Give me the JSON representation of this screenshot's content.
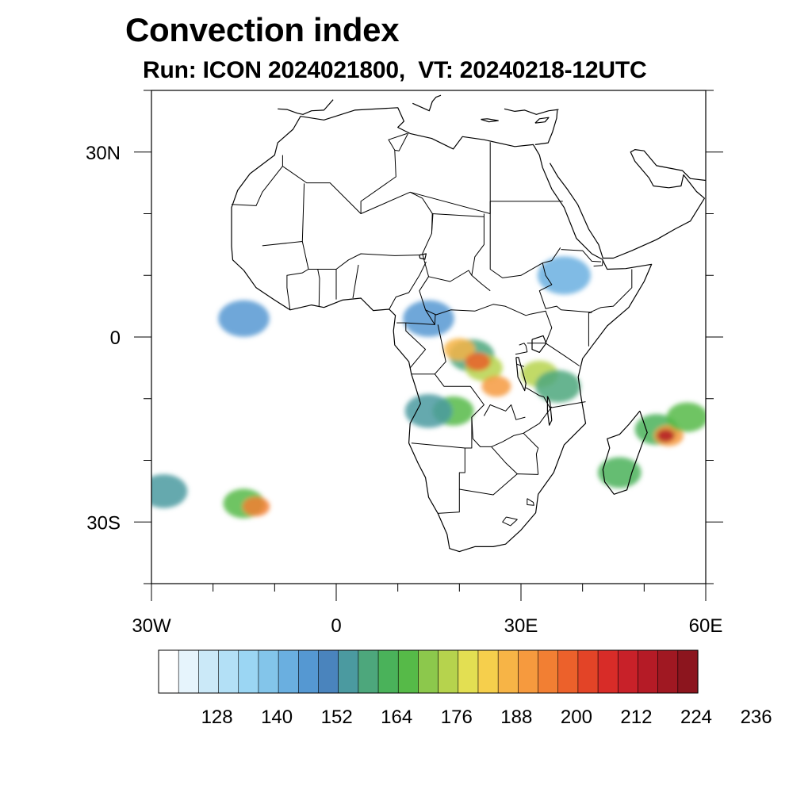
{
  "title": "Convection index",
  "subtitle": "Run: ICON 2024021800,  VT: 20240218-12UTC",
  "map": {
    "lon_range": [
      -30,
      60
    ],
    "lat_range": [
      -40,
      40
    ],
    "lat_labels": [
      {
        "lat": 30,
        "text": "30N"
      },
      {
        "lat": 0,
        "text": "0"
      },
      {
        "lat": -30,
        "text": "30S"
      }
    ],
    "lon_labels": [
      {
        "lon": -30,
        "text": "30W"
      },
      {
        "lon": 0,
        "text": "0"
      },
      {
        "lon": 30,
        "text": "30E"
      },
      {
        "lon": 60,
        "text": "60E"
      }
    ],
    "minor_lat_ticks": [
      40,
      30,
      20,
      10,
      0,
      -10,
      -20,
      -30,
      -40
    ],
    "minor_lon_ticks": [
      -30,
      -20,
      -10,
      0,
      10,
      20,
      30,
      40,
      50,
      60
    ]
  },
  "colorbar": {
    "colors": [
      "#ffffff",
      "#e6f4fc",
      "#cbe9f8",
      "#b3e0f6",
      "#9bd6f3",
      "#83c5ea",
      "#6aafe0",
      "#5598d2",
      "#4a84bd",
      "#4b9aa0",
      "#4da77c",
      "#4ab25a",
      "#56ba48",
      "#8cc84c",
      "#b6d34d",
      "#e3df52",
      "#f6cf4c",
      "#f7b446",
      "#f69a3e",
      "#f27f33",
      "#ec612b",
      "#e34427",
      "#d82c28",
      "#c82129",
      "#b51b26",
      "#a01822",
      "#8c151e"
    ],
    "labels": [
      "128",
      "140",
      "152",
      "164",
      "176",
      "188",
      "200",
      "212",
      "224",
      "236"
    ]
  },
  "convection_cells": [
    {
      "lon": 22,
      "lat": -3,
      "level": 10
    },
    {
      "lon": 24,
      "lat": -5,
      "level": 14
    },
    {
      "lon": 20,
      "lat": -2,
      "level": 17
    },
    {
      "lon": 23,
      "lat": -4,
      "level": 20
    },
    {
      "lon": 26,
      "lat": -8,
      "level": 18
    },
    {
      "lon": 19,
      "lat": -12,
      "level": 12
    },
    {
      "lon": 15,
      "lat": -12,
      "level": 9
    },
    {
      "lon": 33,
      "lat": -6,
      "level": 14
    },
    {
      "lon": 36,
      "lat": -8,
      "level": 10
    },
    {
      "lon": 52,
      "lat": -15,
      "level": 11
    },
    {
      "lon": 54,
      "lat": -16,
      "level": 18
    },
    {
      "lon": 53.5,
      "lat": -16,
      "level": 24
    },
    {
      "lon": 57,
      "lat": -13,
      "level": 12
    },
    {
      "lon": 46,
      "lat": -22,
      "level": 11
    },
    {
      "lon": -15,
      "lat": -27,
      "level": 12
    },
    {
      "lon": -13,
      "lat": -27.5,
      "level": 19
    },
    {
      "lon": -28,
      "lat": -25,
      "level": 9
    },
    {
      "lon": 15,
      "lat": 3,
      "level": 7
    },
    {
      "lon": -15,
      "lat": 3,
      "level": 7
    },
    {
      "lon": 37,
      "lat": 10,
      "level": 6
    }
  ],
  "coastlines": {
    "africa_mainland": [
      [
        -17,
        14.7
      ],
      [
        -17,
        21
      ],
      [
        -16,
        23.8
      ],
      [
        -14,
        26.5
      ],
      [
        -10,
        29.5
      ],
      [
        -9.5,
        31.5
      ],
      [
        -7,
        33.7
      ],
      [
        -5.8,
        35.8
      ],
      [
        -2,
        35.2
      ],
      [
        3,
        36.8
      ],
      [
        10,
        37.2
      ],
      [
        11,
        35
      ],
      [
        10,
        34
      ],
      [
        12,
        33
      ],
      [
        15.5,
        32.2
      ],
      [
        19,
        30.5
      ],
      [
        20.5,
        32.5
      ],
      [
        24,
        32
      ],
      [
        29,
        30.9
      ],
      [
        32,
        31.2
      ],
      [
        33,
        29.5
      ],
      [
        33.5,
        27.5
      ],
      [
        35,
        24
      ],
      [
        37,
        21
      ],
      [
        39,
        16
      ],
      [
        41.5,
        13.5
      ],
      [
        43.2,
        12.6
      ],
      [
        44,
        11
      ],
      [
        47,
        11.1
      ],
      [
        51.2,
        11.8
      ],
      [
        50,
        9
      ],
      [
        47.5,
        4.8
      ],
      [
        44,
        1.8
      ],
      [
        41.5,
        -1.5
      ],
      [
        40,
        -3.5
      ],
      [
        39.3,
        -6.5
      ],
      [
        39.8,
        -10
      ],
      [
        40.5,
        -14
      ],
      [
        37,
        -17.5
      ],
      [
        35.3,
        -22
      ],
      [
        32.8,
        -25.5
      ],
      [
        32.4,
        -28.5
      ],
      [
        30,
        -31.3
      ],
      [
        27.5,
        -33.6
      ],
      [
        25.5,
        -34
      ],
      [
        22.5,
        -34
      ],
      [
        20,
        -34.8
      ],
      [
        18.4,
        -34.3
      ],
      [
        18,
        -32
      ],
      [
        16.5,
        -28.6
      ],
      [
        15,
        -26
      ],
      [
        14.5,
        -22.8
      ],
      [
        13.3,
        -20.5
      ],
      [
        11.8,
        -17.2
      ],
      [
        12,
        -14
      ],
      [
        13.7,
        -10.8
      ],
      [
        13,
        -8.5
      ],
      [
        12.2,
        -6
      ],
      [
        11.8,
        -4
      ],
      [
        9.5,
        -1.3
      ],
      [
        9.3,
        1
      ],
      [
        9.6,
        3.5
      ],
      [
        8.6,
        4.5
      ],
      [
        6,
        4.3
      ],
      [
        4,
        6.3
      ],
      [
        1,
        6
      ],
      [
        -2,
        4.8
      ],
      [
        -4,
        5.2
      ],
      [
        -7.5,
        4.4
      ],
      [
        -10,
        6
      ],
      [
        -13,
        8
      ],
      [
        -15,
        10.8
      ],
      [
        -16.8,
        12.5
      ],
      [
        -17,
        14.7
      ]
    ],
    "madagascar": [
      [
        49.3,
        -12
      ],
      [
        50.5,
        -15.5
      ],
      [
        49.8,
        -17
      ],
      [
        48,
        -22
      ],
      [
        47.2,
        -24.8
      ],
      [
        45.1,
        -25.5
      ],
      [
        43.6,
        -23.5
      ],
      [
        43.3,
        -21.5
      ],
      [
        44.4,
        -18
      ],
      [
        44,
        -16.5
      ],
      [
        46,
        -15.8
      ],
      [
        47.5,
        -14.2
      ],
      [
        49.3,
        -12
      ]
    ],
    "arabia": [
      [
        34.7,
        28.2
      ],
      [
        36,
        26
      ],
      [
        37.5,
        24
      ],
      [
        39.2,
        21.5
      ],
      [
        41,
        17.5
      ],
      [
        42.6,
        15
      ],
      [
        43.3,
        12.8
      ],
      [
        45,
        12.8
      ],
      [
        48,
        14
      ],
      [
        52,
        15.8
      ],
      [
        55,
        17.5
      ],
      [
        57.5,
        18.8
      ],
      [
        59.8,
        22.5
      ],
      [
        58.5,
        23.6
      ],
      [
        56.4,
        26.3
      ],
      [
        56,
        24.5
      ],
      [
        54,
        24.2
      ],
      [
        51.5,
        24.5
      ],
      [
        50.8,
        25.8
      ],
      [
        48.5,
        28.5
      ],
      [
        47.8,
        30
      ],
      [
        48.5,
        30.4
      ],
      [
        50,
        30.2
      ],
      [
        52,
        27.8
      ],
      [
        56.2,
        27
      ],
      [
        57.5,
        25.7
      ],
      [
        60,
        25.4
      ]
    ],
    "iberia_south": [
      [
        -9.5,
        37
      ],
      [
        -8,
        36.9
      ],
      [
        -6.3,
        36.3
      ],
      [
        -5.4,
        36.1
      ],
      [
        -4,
        36.7
      ],
      [
        -2,
        36.8
      ],
      [
        -0.5,
        38.5
      ]
    ],
    "sicily_italy": [
      [
        12.4,
        37.9
      ],
      [
        15.1,
        36.7
      ],
      [
        15.6,
        38.2
      ],
      [
        16.2,
        38.9
      ],
      [
        17,
        39.2
      ]
    ],
    "crete": [
      [
        23.5,
        35.3
      ],
      [
        24.5,
        35.4
      ],
      [
        26.3,
        35.1
      ],
      [
        24.8,
        34.9
      ],
      [
        23.5,
        35.3
      ]
    ],
    "cyprus": [
      [
        32.3,
        34.7
      ],
      [
        33,
        35.4
      ],
      [
        34.5,
        35.6
      ],
      [
        33.9,
        34.9
      ],
      [
        32.3,
        34.7
      ]
    ],
    "levant": [
      [
        35.9,
        36.8
      ],
      [
        35.8,
        35.5
      ],
      [
        35.1,
        33.2
      ],
      [
        34.4,
        31.5
      ],
      [
        32.3,
        31.2
      ]
    ],
    "turkey_south": [
      [
        27.3,
        37
      ],
      [
        29,
        36.6
      ],
      [
        30.6,
        36.8
      ],
      [
        32.5,
        36.1
      ],
      [
        34.5,
        36.7
      ],
      [
        36.1,
        36.9
      ]
    ],
    "lake_victoria": [
      [
        31.8,
        -0.4
      ],
      [
        33.6,
        0.2
      ],
      [
        34.1,
        -1
      ],
      [
        33,
        -2.5
      ],
      [
        31.8,
        -2
      ],
      [
        31.8,
        -0.4
      ]
    ],
    "lake_tanganyika": [
      [
        29.2,
        -3.3
      ],
      [
        29.6,
        -3.3
      ],
      [
        30.8,
        -7.5
      ],
      [
        30.6,
        -8.7
      ],
      [
        29.5,
        -6.5
      ],
      [
        29.2,
        -3.3
      ]
    ],
    "lake_malawi": [
      [
        34.3,
        -9.6
      ],
      [
        34.7,
        -10.5
      ],
      [
        35,
        -13.5
      ],
      [
        34.6,
        -14.3
      ],
      [
        34.3,
        -12
      ],
      [
        34.3,
        -9.6
      ]
    ],
    "lake_chad": [
      [
        13.5,
        13.3
      ],
      [
        14.6,
        13.5
      ],
      [
        14.4,
        12.6
      ],
      [
        13.6,
        12.8
      ],
      [
        13.5,
        13.3
      ]
    ]
  },
  "borders": [
    [
      [
        -8.7,
        27.7
      ],
      [
        -4.8,
        25
      ],
      [
        -1,
        25
      ],
      [
        4,
        20
      ],
      [
        12,
        23.5
      ],
      [
        14,
        22.5
      ],
      [
        15.7,
        19.9
      ],
      [
        15.5,
        16.8
      ],
      [
        14,
        13.5
      ]
    ],
    [
      [
        -17,
        21.5
      ],
      [
        -13,
        21.3
      ],
      [
        -12,
        23.5
      ],
      [
        -8.7,
        27.7
      ],
      [
        -8.7,
        29.5
      ]
    ],
    [
      [
        -12,
        14.8
      ],
      [
        -5.5,
        15.5
      ],
      [
        -5.2,
        24.9
      ]
    ],
    [
      [
        -5.5,
        15.5
      ],
      [
        -4.5,
        11
      ],
      [
        0,
        11
      ],
      [
        2,
        12.5
      ],
      [
        4,
        13.5
      ],
      [
        9.5,
        13.2
      ],
      [
        13.5,
        13.3
      ]
    ],
    [
      [
        0,
        11
      ],
      [
        0,
        6.1
      ]
    ],
    [
      [
        -2.8,
        5
      ],
      [
        -2.7,
        9.5
      ],
      [
        -3,
        11
      ]
    ],
    [
      [
        2.7,
        6.3
      ],
      [
        3.6,
        11.7
      ]
    ],
    [
      [
        -7.5,
        4.4
      ],
      [
        -8,
        8
      ],
      [
        -8,
        10
      ],
      [
        -5.5,
        10.4
      ],
      [
        -4.5,
        11
      ]
    ],
    [
      [
        4,
        20
      ],
      [
        4,
        22
      ],
      [
        9.7,
        26
      ],
      [
        9.5,
        30.3
      ],
      [
        8.5,
        32
      ],
      [
        11.5,
        33
      ]
    ],
    [
      [
        9.5,
        30.3
      ],
      [
        10.2,
        30.2
      ],
      [
        11.7,
        33.1
      ]
    ],
    [
      [
        12,
        23.5
      ],
      [
        25,
        20
      ],
      [
        25,
        22
      ],
      [
        25,
        31.6
      ]
    ],
    [
      [
        25,
        22
      ],
      [
        36.8,
        22
      ]
    ],
    [
      [
        24,
        20
      ],
      [
        24,
        15
      ],
      [
        22.5,
        13
      ],
      [
        22,
        10
      ],
      [
        23.5,
        8.7
      ],
      [
        25,
        7.5
      ]
    ],
    [
      [
        15.5,
        16.8
      ],
      [
        15.6,
        20
      ],
      [
        24,
        19.5
      ]
    ],
    [
      [
        14,
        13.5
      ],
      [
        15,
        9.8
      ],
      [
        13.5,
        7.5
      ],
      [
        14.5,
        4.4
      ],
      [
        16,
        2
      ]
    ],
    [
      [
        8.6,
        4.5
      ],
      [
        9.7,
        6.5
      ],
      [
        11.8,
        7.2
      ],
      [
        13.5,
        10
      ],
      [
        14.6,
        12.2
      ]
    ],
    [
      [
        15,
        9.8
      ],
      [
        18.5,
        9
      ],
      [
        21.5,
        10.8
      ],
      [
        22,
        10
      ]
    ],
    [
      [
        14.5,
        4.4
      ],
      [
        16.2,
        3.6
      ],
      [
        18.6,
        4.4
      ],
      [
        22.5,
        4.2
      ],
      [
        25.5,
        5.3
      ],
      [
        27.4,
        5
      ],
      [
        30.8,
        3.5
      ],
      [
        31.5,
        3.7
      ]
    ],
    [
      [
        11.3,
        2.3
      ],
      [
        9.8,
        2.3
      ]
    ],
    [
      [
        11.3,
        2.3
      ],
      [
        16,
        2
      ],
      [
        16.1,
        3.6
      ]
    ],
    [
      [
        11.3,
        2.3
      ],
      [
        11.3,
        1
      ],
      [
        14.5,
        -2
      ],
      [
        12,
        -5
      ]
    ],
    [
      [
        16.5,
        2
      ],
      [
        17.8,
        -4
      ],
      [
        16,
        -6
      ],
      [
        12.2,
        -6
      ]
    ],
    [
      [
        25,
        22
      ],
      [
        25,
        11
      ],
      [
        27,
        9.6
      ],
      [
        30,
        10
      ],
      [
        33.5,
        12
      ],
      [
        35,
        12.4
      ],
      [
        36.4,
        14.5
      ]
    ],
    [
      [
        33.5,
        12
      ],
      [
        34,
        10
      ],
      [
        35,
        8.5
      ],
      [
        33,
        7.5
      ],
      [
        34,
        4.6
      ],
      [
        35.8,
        5
      ],
      [
        36.5,
        4.4
      ]
    ],
    [
      [
        36.5,
        4.4
      ],
      [
        41.5,
        4
      ],
      [
        41,
        3.9
      ],
      [
        43,
        4.8
      ],
      [
        45,
        5
      ],
      [
        48,
        8
      ],
      [
        48,
        11
      ]
    ],
    [
      [
        36.5,
        14.2
      ],
      [
        40,
        14
      ],
      [
        41.5,
        12.3
      ],
      [
        43,
        12.2
      ]
    ],
    [
      [
        41.8,
        11.5
      ],
      [
        43.2,
        11.6
      ],
      [
        43.3,
        12.5
      ]
    ],
    [
      [
        31.5,
        3.7
      ],
      [
        34,
        4.2
      ],
      [
        35,
        1.5
      ],
      [
        34,
        -1
      ],
      [
        37,
        -3
      ],
      [
        39.5,
        -4.7
      ]
    ],
    [
      [
        41,
        -1.5
      ],
      [
        41,
        3.9
      ]
    ],
    [
      [
        29.7,
        -1.3
      ],
      [
        30.5,
        -1
      ],
      [
        30.8,
        -1.4
      ],
      [
        31,
        -2.4
      ],
      [
        29.1,
        -2.8
      ]
    ],
    [
      [
        29.3,
        -4.4
      ],
      [
        30.5,
        -4.8
      ]
    ],
    [
      [
        31,
        -1
      ],
      [
        34,
        -1
      ]
    ],
    [
      [
        30.8,
        -8.2
      ],
      [
        33,
        -9.5
      ],
      [
        33.7,
        -9.7
      ],
      [
        34.7,
        -11.5
      ],
      [
        40.5,
        -10.5
      ]
    ],
    [
      [
        21.8,
        -8
      ],
      [
        24,
        -11
      ],
      [
        22,
        -13
      ],
      [
        22,
        -18
      ],
      [
        20.9,
        -18
      ]
    ],
    [
      [
        21.8,
        -8
      ],
      [
        17.5,
        -8
      ],
      [
        16,
        -6
      ]
    ],
    [
      [
        12.2,
        -17.2
      ],
      [
        20.9,
        -18
      ],
      [
        20.9,
        -22
      ],
      [
        20,
        -22
      ],
      [
        20,
        -24.7
      ],
      [
        20,
        -28.4
      ],
      [
        16.5,
        -28.6
      ]
    ],
    [
      [
        20,
        -24.7
      ],
      [
        25.5,
        -25.6
      ],
      [
        29.4,
        -22.2
      ],
      [
        32.8,
        -22.3
      ]
    ],
    [
      [
        25.2,
        -17.8
      ],
      [
        27,
        -17
      ],
      [
        28.8,
        -16
      ],
      [
        30.4,
        -15.6
      ],
      [
        33,
        -14
      ],
      [
        35,
        -11.3
      ]
    ],
    [
      [
        22,
        -13
      ],
      [
        22.2,
        -16.5
      ],
      [
        23.4,
        -17.8
      ],
      [
        25.2,
        -17.8
      ]
    ],
    [
      [
        25.2,
        -17.8
      ],
      [
        27.5,
        -20.4
      ],
      [
        29.4,
        -22.2
      ]
    ],
    [
      [
        32.8,
        -22.3
      ],
      [
        32.5,
        -19
      ],
      [
        32.8,
        -18
      ],
      [
        30.4,
        -15.6
      ]
    ],
    [
      [
        27.6,
        -29.2
      ],
      [
        29.4,
        -29.6
      ],
      [
        28.3,
        -30.6
      ],
      [
        27,
        -30
      ],
      [
        27.6,
        -29.2
      ]
    ],
    [
      [
        31,
        -26.2
      ],
      [
        32,
        -26.8
      ],
      [
        32.1,
        -27.3
      ],
      [
        31,
        -27.2
      ],
      [
        31,
        -26.2
      ]
    ],
    [
      [
        24,
        -12.8
      ],
      [
        25,
        -11
      ],
      [
        27.5,
        -12
      ],
      [
        28.4,
        -11
      ],
      [
        29.2,
        -13.4
      ],
      [
        30.7,
        -13
      ]
    ]
  ]
}
